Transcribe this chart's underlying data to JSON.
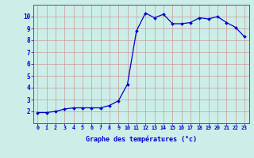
{
  "x": [
    0,
    1,
    2,
    3,
    4,
    5,
    6,
    7,
    8,
    9,
    10,
    11,
    12,
    13,
    14,
    15,
    16,
    17,
    18,
    19,
    20,
    21,
    22,
    23
  ],
  "y": [
    1.9,
    1.9,
    2.0,
    2.2,
    2.3,
    2.3,
    2.3,
    2.3,
    2.5,
    2.9,
    4.3,
    8.8,
    10.3,
    9.9,
    10.2,
    9.4,
    9.4,
    9.5,
    9.9,
    9.8,
    10.0,
    9.5,
    9.1,
    8.3
  ],
  "line_color": "#0000cc",
  "marker": "D",
  "marker_size": 2.0,
  "line_width": 0.9,
  "background_color": "#cceee8",
  "grid_color_major": "#cc9999",
  "grid_color_minor": "#cc9999",
  "axis_label_color": "#0000cc",
  "tick_label_color": "#0000cc",
  "xlabel": "Graphe des températures (°c)",
  "ylim": [
    1,
    11
  ],
  "xlim": [
    -0.5,
    23.5
  ],
  "yticks": [
    2,
    3,
    4,
    5,
    6,
    7,
    8,
    9,
    10
  ],
  "xticks": [
    0,
    1,
    2,
    3,
    4,
    5,
    6,
    7,
    8,
    9,
    10,
    11,
    12,
    13,
    14,
    15,
    16,
    17,
    18,
    19,
    20,
    21,
    22,
    23
  ],
  "spine_color": "#555577",
  "xlabel_fontsize": 6.0,
  "xtick_fontsize": 4.8,
  "ytick_fontsize": 5.5
}
